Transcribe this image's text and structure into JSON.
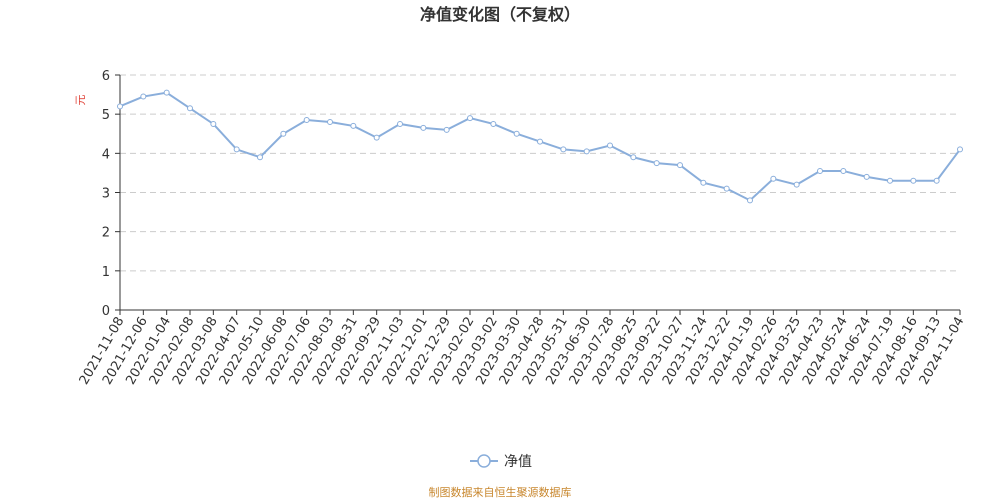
{
  "chart_data": {
    "type": "line",
    "title": "净值变化图（不复权）",
    "y_label": "元",
    "footer": "制图数据来自恒生聚源数据库",
    "categories": [
      "2021-11-08",
      "2021-12-06",
      "2022-01-04",
      "2022-02-08",
      "2022-03-08",
      "2022-04-07",
      "2022-05-10",
      "2022-06-08",
      "2022-07-06",
      "2022-08-03",
      "2022-08-31",
      "2022-09-29",
      "2022-11-03",
      "2022-12-01",
      "2022-12-29",
      "2023-02-02",
      "2023-03-02",
      "2023-03-30",
      "2023-04-28",
      "2023-05-31",
      "2023-06-30",
      "2023-07-28",
      "2023-08-25",
      "2023-09-22",
      "2023-10-27",
      "2023-11-24",
      "2023-12-22",
      "2024-01-19",
      "2024-02-26",
      "2024-03-25",
      "2024-04-23",
      "2024-05-24",
      "2024-06-24",
      "2024-07-19",
      "2024-08-16",
      "2024-09-13",
      "2024-11-04"
    ],
    "series": [
      {
        "name": "净值",
        "color": "#8aaedb",
        "values": [
          5.2,
          5.45,
          5.55,
          5.15,
          4.75,
          4.1,
          3.9,
          4.5,
          4.85,
          4.8,
          4.7,
          4.4,
          4.75,
          4.65,
          4.6,
          4.9,
          4.75,
          4.5,
          4.3,
          4.1,
          4.05,
          4.2,
          3.9,
          3.75,
          3.7,
          3.25,
          3.1,
          2.8,
          3.35,
          3.2,
          3.55,
          3.55,
          3.4,
          3.3,
          3.3,
          3.3,
          4.1
        ]
      }
    ],
    "ylim": [
      0,
      6
    ],
    "yticks": [
      0,
      1,
      2,
      3,
      4,
      5,
      6
    ],
    "grid": true
  }
}
